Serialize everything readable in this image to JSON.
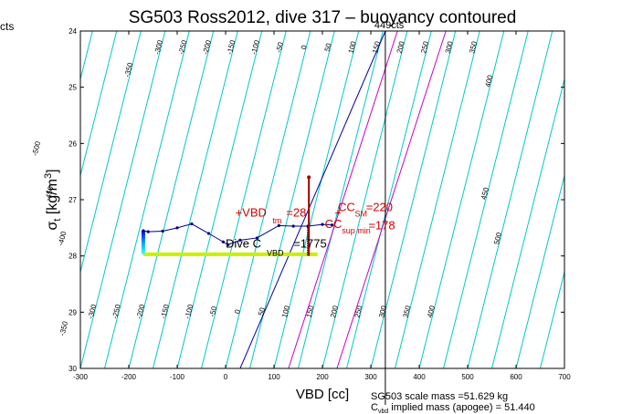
{
  "chart_data": {
    "type": "line",
    "title": "SG503 Ross2012, dive 317 – buoyancy contoured",
    "xlabel": "VBD [cc]",
    "ylabel_main": "σ",
    "ylabel_sub": "t",
    "ylabel_rest": " [kg/m",
    "ylabel_sup": "3",
    "ylabel_end": "]",
    "xlim": [
      -300,
      700
    ],
    "ylim": [
      24,
      30
    ],
    "y_reversed": true,
    "xticks": [
      -300,
      -200,
      -100,
      0,
      100,
      200,
      300,
      400,
      500,
      600,
      700
    ],
    "yticks": [
      24,
      25,
      26,
      27,
      28,
      29,
      30
    ],
    "grid": false,
    "buoyancy_contours": {
      "slope_cc_per_sigma": 36,
      "intercept_step_cc": 50,
      "levels": [
        -550,
        -500,
        -450,
        -400,
        -350,
        -300,
        -250,
        -200,
        -150,
        -100,
        -50,
        0,
        50,
        100,
        150,
        200,
        250,
        300,
        350,
        400,
        450,
        500,
        550,
        600,
        650
      ],
      "color": "#00c8c8",
      "labels": [
        {
          "text": "-350",
          "sigma": 24.7
        },
        {
          "text": "-300",
          "sigma": 24.3
        },
        {
          "text": "-250",
          "sigma": 24.3
        },
        {
          "text": "-200",
          "sigma": 24.3
        },
        {
          "text": "-150",
          "sigma": 24.3
        },
        {
          "text": "-100",
          "sigma": 24.3
        },
        {
          "text": "-50",
          "sigma": 24.3
        },
        {
          "text": "0",
          "sigma": 24.3
        },
        {
          "text": "50",
          "sigma": 24.3
        },
        {
          "text": "100",
          "sigma": 24.3
        },
        {
          "text": "150",
          "sigma": 24.3
        },
        {
          "text": "200",
          "sigma": 24.3
        },
        {
          "text": "250",
          "sigma": 24.3
        },
        {
          "text": "300",
          "sigma": 24.3
        },
        {
          "text": "350",
          "sigma": 24.3
        },
        {
          "text": "400",
          "sigma": 24.9
        },
        {
          "text": "-500",
          "sigma": 26.1
        },
        {
          "text": "-450",
          "sigma": 26.9
        },
        {
          "text": "-400",
          "sigma": 27.7
        },
        {
          "text": "-350",
          "sigma": 29.3
        },
        {
          "text": "-300",
          "sigma": 29.0
        },
        {
          "text": "-250",
          "sigma": 29.0
        },
        {
          "text": "-200",
          "sigma": 29.0
        },
        {
          "text": "-150",
          "sigma": 29.0
        },
        {
          "text": "-100",
          "sigma": 29.0
        },
        {
          "text": "-50",
          "sigma": 29.0
        },
        {
          "text": "0",
          "sigma": 29.0
        },
        {
          "text": "50",
          "sigma": 29.0
        },
        {
          "text": "100",
          "sigma": 29.0
        },
        {
          "text": "150",
          "sigma": 29.0
        },
        {
          "text": "200",
          "sigma": 29.0
        },
        {
          "text": "250",
          "sigma": 29.0
        },
        {
          "text": "300",
          "sigma": 29.0
        },
        {
          "text": "350",
          "sigma": 29.0
        },
        {
          "text": "400",
          "sigma": 29.0
        },
        {
          "text": "450",
          "sigma": 26.9
        },
        {
          "text": "500",
          "sigma": 27.7
        }
      ]
    },
    "neutral_lines": [
      {
        "name": "blue",
        "color": "#0000aa",
        "points": [
          [
            30,
            30
          ],
          [
            330,
            24
          ]
        ]
      },
      {
        "name": "magenta-1",
        "color": "#c800c8",
        "points": [
          [
            130,
            30
          ],
          [
            355,
            24
          ]
        ]
      },
      {
        "name": "magenta-2",
        "color": "#c800c8",
        "points": [
          [
            230,
            30
          ],
          [
            455,
            24
          ]
        ]
      }
    ],
    "vertical_marker": {
      "x": 330,
      "label": "449cts"
    },
    "dive_profile": {
      "color": "#000080",
      "points": [
        [
          -170,
          27.55
        ],
        [
          -160,
          27.57
        ],
        [
          -130,
          27.56
        ],
        [
          -100,
          27.5
        ],
        [
          -70,
          27.43
        ],
        [
          -35,
          27.6
        ],
        [
          -5,
          27.75
        ],
        [
          5,
          27.8
        ],
        [
          30,
          27.72
        ],
        [
          65,
          27.68
        ],
        [
          110,
          27.46
        ],
        [
          140,
          27.47
        ],
        [
          170,
          27.47
        ],
        [
          200,
          27.44
        ],
        [
          220,
          27.45
        ]
      ]
    },
    "color_ramp": {
      "x": -170,
      "sigma_start": 27.55,
      "sigma_end": 27.97
    },
    "yellow_band": {
      "x_start": -170,
      "x_end": 190,
      "sigma": 27.97
    },
    "dots_segment": {
      "x": 170,
      "sigma_start": 27.5,
      "sigma_end": 28.0
    },
    "red_segment": {
      "x": 172,
      "sigma_start": 26.6,
      "sigma_end": 28.0
    },
    "annotations": [
      {
        "text": "Dive C",
        "x": 0,
        "sigma": 27.85,
        "color": "black"
      },
      {
        "text": "=1775",
        "x": 140,
        "sigma": 27.85,
        "color": "black"
      },
      {
        "text": "VBD",
        "x": 85,
        "sigma": 28.0,
        "color": "black",
        "small": true
      },
      {
        "text": "+VBD",
        "x": 20,
        "sigma": 27.3,
        "color": "red"
      },
      {
        "text": "tm",
        "x": 97,
        "sigma": 27.42,
        "color": "red",
        "small": true
      },
      {
        "text": "=28",
        "x": 125,
        "sigma": 27.3,
        "color": "red"
      },
      {
        "text": "CC",
        "x": 205,
        "sigma": 27.5,
        "color": "red"
      },
      {
        "text": "sup min",
        "x": 240,
        "sigma": 27.6,
        "color": "red",
        "small": true
      },
      {
        "text": "=178",
        "x": 295,
        "sigma": 27.53,
        "color": "red"
      },
      {
        "text": "+",
        "x": 225,
        "sigma": 27.3,
        "color": "red"
      },
      {
        "text": "CC",
        "x": 232,
        "sigma": 27.2,
        "color": "red"
      },
      {
        "text": "SM",
        "x": 267,
        "sigma": 27.3,
        "color": "red",
        "small": true
      },
      {
        "text": "=220",
        "x": 290,
        "sigma": 27.2,
        "color": "red"
      }
    ],
    "corner_text": "cts",
    "footnote_1": "SG503 scale mass =51.629 kg",
    "footnote_2a": "C",
    "footnote_2b": "vbd",
    "footnote_2c": " implied mass (apogee) = 51.440"
  }
}
